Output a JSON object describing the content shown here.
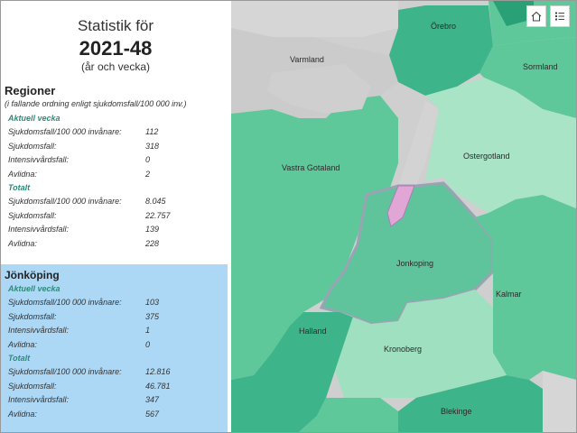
{
  "header": {
    "label": "Statistik för",
    "value": "2021-48",
    "sub": "(år och vecka)"
  },
  "regioner": {
    "title": "Regioner",
    "desc": "(i fallande ordning enligt sjukdomsfall/100 000 inv.)",
    "current_title": "Aktuell vecka",
    "current": [
      {
        "k": "Sjukdomsfall/100 000 invånare:",
        "v": "112"
      },
      {
        "k": "Sjukdomsfall:",
        "v": "318"
      },
      {
        "k": "Intensivvårdsfall:",
        "v": "0"
      },
      {
        "k": "Avlidna:",
        "v": "2"
      }
    ],
    "total_title": "Totalt",
    "total": [
      {
        "k": "Sjukdomsfall/100 000 invånare:",
        "v": "8.045"
      },
      {
        "k": "Sjukdomsfall:",
        "v": "22.757"
      },
      {
        "k": "Intensivvårdsfall:",
        "v": "139"
      },
      {
        "k": "Avlidna:",
        "v": "228"
      }
    ]
  },
  "selected": {
    "title": "Jönköping",
    "current_title": "Aktuell vecka",
    "current": [
      {
        "k": "Sjukdomsfall/100 000 invånare:",
        "v": "103"
      },
      {
        "k": "Sjukdomsfall:",
        "v": "375"
      },
      {
        "k": "Intensivvårdsfall:",
        "v": "1"
      },
      {
        "k": "Avlidna:",
        "v": "0"
      }
    ],
    "total_title": "Totalt",
    "total": [
      {
        "k": "Sjukdomsfall/100 000 invånare:",
        "v": "12.816"
      },
      {
        "k": "Sjukdomsfall:",
        "v": "46.781"
      },
      {
        "k": "Intensivvårdsfall:",
        "v": "347"
      },
      {
        "k": "Avlidna:",
        "v": "567"
      }
    ]
  },
  "map": {
    "labels": {
      "orebro": "Örebro",
      "varmland": "Varmland",
      "sormland": "Sormland",
      "vastra_gotaland": "Vastra Gotaland",
      "ostergotland": "Ostergotland",
      "jonkoping": "Jonkoping",
      "kalmar": "Kalmar",
      "halland": "Halland",
      "kronoberg": "Kronoberg",
      "blekinge": "Blekinge"
    },
    "home_icon": "home-icon",
    "list_icon": "list-icon",
    "colors": {
      "dark": "#3db489",
      "medium": "#5ec89b",
      "light": "#9fe0c0",
      "pale": "#a8e4c5",
      "highlight": "#9aa3b3"
    }
  }
}
